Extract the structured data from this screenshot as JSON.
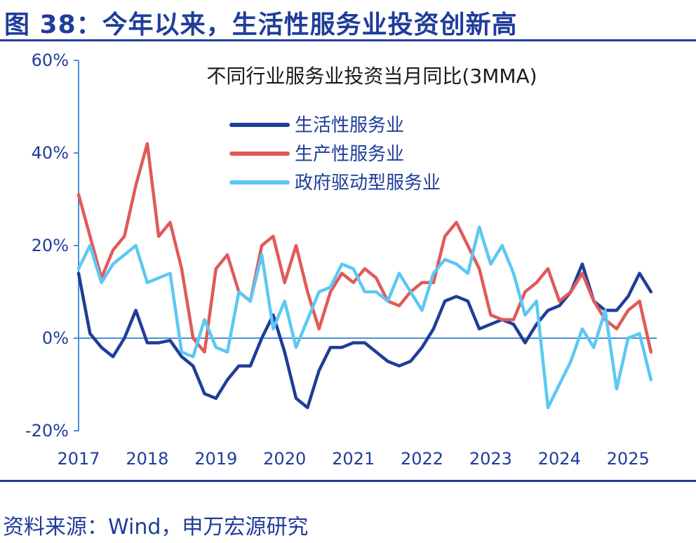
{
  "figure": {
    "title": "图 38：今年以来，生活性服务业投资创新高",
    "source": "资料来源：Wind，申万宏源研究"
  },
  "chart_data": {
    "type": "line",
    "title": "不同行业服务业投资当月同比(3MMA)",
    "xlabel": "",
    "ylabel": "",
    "ylim": [
      -20,
      60
    ],
    "yticks": [
      -20,
      0,
      20,
      40,
      60
    ],
    "ytick_labels": [
      "-20%",
      "0%",
      "20%",
      "40%",
      "60%"
    ],
    "xlim": [
      "2017-01",
      "2025-06"
    ],
    "xticks": [
      "2017-01",
      "2018-01",
      "2019-01",
      "2020-01",
      "2021-01",
      "2022-01",
      "2023-01",
      "2024-01",
      "2025-01"
    ],
    "xtick_labels": [
      "2017",
      "2018",
      "2019",
      "2020",
      "2021",
      "2022",
      "2023",
      "2024",
      "2025"
    ],
    "grid": false,
    "legend": "top-center",
    "colors": {
      "axis": "#4a90d9",
      "tick_text": "#1f3d99",
      "title_text": "#1a1a1a"
    },
    "series": [
      {
        "name": "生活性服务业",
        "color": "#1f3d99",
        "x": [
          "2017-01",
          "2017-03",
          "2017-05",
          "2017-07",
          "2017-09",
          "2017-11",
          "2018-01",
          "2018-03",
          "2018-05",
          "2018-07",
          "2018-09",
          "2018-11",
          "2019-01",
          "2019-03",
          "2019-05",
          "2019-07",
          "2019-09",
          "2019-11",
          "2020-01",
          "2020-03",
          "2020-05",
          "2020-07",
          "2020-09",
          "2020-11",
          "2021-01",
          "2021-03",
          "2021-05",
          "2021-07",
          "2021-09",
          "2021-11",
          "2022-01",
          "2022-03",
          "2022-05",
          "2022-07",
          "2022-09",
          "2022-11",
          "2023-01",
          "2023-03",
          "2023-05",
          "2023-07",
          "2023-09",
          "2023-11",
          "2024-01",
          "2024-03",
          "2024-05",
          "2024-07",
          "2024-09",
          "2024-11",
          "2025-01",
          "2025-03",
          "2025-05"
        ],
        "values": [
          14,
          1,
          -2,
          -4,
          0,
          6,
          -1,
          -1,
          -0.5,
          -4,
          -6,
          -12,
          -13,
          -9,
          -6,
          -6,
          0,
          5,
          -3,
          -13,
          -15,
          -7,
          -2,
          -2,
          -1,
          -1,
          -3,
          -5,
          -6,
          -5,
          -2,
          2,
          8,
          9,
          8,
          2,
          3,
          4,
          3,
          -1,
          3,
          6,
          7,
          10,
          16,
          8,
          6,
          6,
          9,
          14,
          10
        ]
      },
      {
        "name": "生产性服务业",
        "color": "#e05a5a",
        "x": [
          "2017-01",
          "2017-03",
          "2017-05",
          "2017-07",
          "2017-09",
          "2017-11",
          "2018-01",
          "2018-03",
          "2018-05",
          "2018-07",
          "2018-09",
          "2018-11",
          "2019-01",
          "2019-03",
          "2019-05",
          "2019-07",
          "2019-09",
          "2019-11",
          "2020-01",
          "2020-03",
          "2020-05",
          "2020-07",
          "2020-09",
          "2020-11",
          "2021-01",
          "2021-03",
          "2021-05",
          "2021-07",
          "2021-09",
          "2021-11",
          "2022-01",
          "2022-03",
          "2022-05",
          "2022-07",
          "2022-09",
          "2022-11",
          "2023-01",
          "2023-03",
          "2023-05",
          "2023-07",
          "2023-09",
          "2023-11",
          "2024-01",
          "2024-03",
          "2024-05",
          "2024-07",
          "2024-09",
          "2024-11",
          "2025-01",
          "2025-03",
          "2025-05"
        ],
        "values": [
          31,
          22,
          13,
          19,
          22,
          33,
          42,
          22,
          25,
          15,
          0,
          -3,
          15,
          18,
          10,
          8,
          20,
          22,
          12,
          20,
          10,
          2,
          10,
          14,
          12,
          15,
          13,
          8,
          7,
          10,
          12,
          12,
          22,
          25,
          20,
          15,
          5,
          4,
          4,
          10,
          12,
          15,
          8,
          10,
          14,
          8,
          4,
          2,
          6,
          8,
          -3
        ]
      },
      {
        "name": "政府驱动型服务业",
        "color": "#5cc8f2",
        "x": [
          "2017-01",
          "2017-03",
          "2017-05",
          "2017-07",
          "2017-09",
          "2017-11",
          "2018-01",
          "2018-03",
          "2018-05",
          "2018-07",
          "2018-09",
          "2018-11",
          "2019-01",
          "2019-03",
          "2019-05",
          "2019-07",
          "2019-09",
          "2019-11",
          "2020-01",
          "2020-03",
          "2020-05",
          "2020-07",
          "2020-09",
          "2020-11",
          "2021-01",
          "2021-03",
          "2021-05",
          "2021-07",
          "2021-09",
          "2021-11",
          "2022-01",
          "2022-03",
          "2022-05",
          "2022-07",
          "2022-09",
          "2022-11",
          "2023-01",
          "2023-03",
          "2023-05",
          "2023-07",
          "2023-09",
          "2023-11",
          "2024-01",
          "2024-03",
          "2024-05",
          "2024-07",
          "2024-09",
          "2024-11",
          "2025-01",
          "2025-03",
          "2025-05"
        ],
        "values": [
          15,
          20,
          12,
          16,
          18,
          20,
          12,
          13,
          14,
          -3,
          -4,
          4,
          -2,
          -3,
          10,
          8,
          18,
          2,
          8,
          -2,
          4,
          10,
          11,
          16,
          15,
          10,
          10,
          8,
          14,
          10,
          6,
          14,
          17,
          16,
          14,
          24,
          16,
          20,
          14,
          5,
          8,
          -15,
          -10,
          -5,
          2,
          -2,
          6,
          -11,
          0,
          1,
          -9
        ]
      }
    ]
  }
}
